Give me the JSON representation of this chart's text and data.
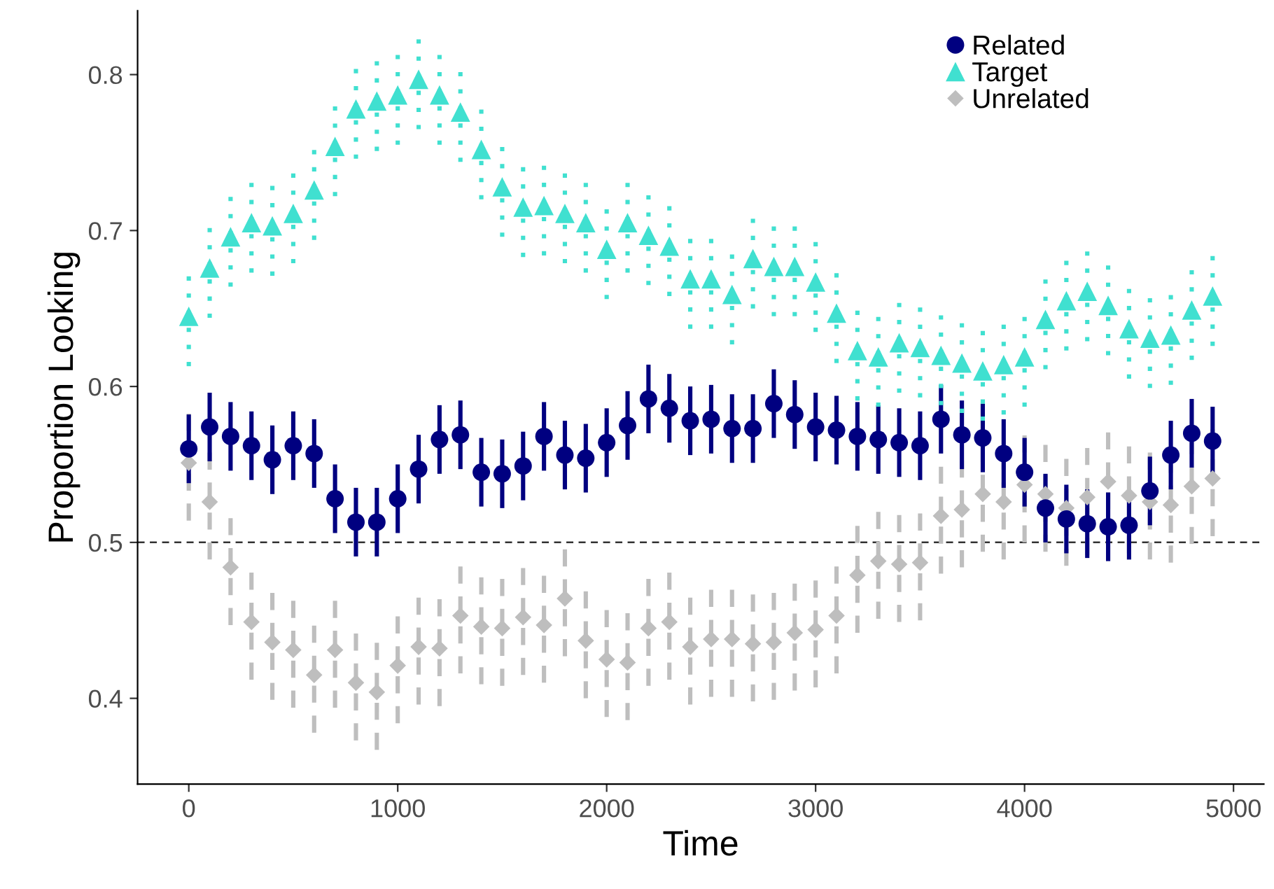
{
  "chart_data": {
    "type": "scatter",
    "xlabel": "Time",
    "ylabel": "Proportion Looking",
    "x": [
      0,
      100,
      200,
      300,
      400,
      500,
      600,
      700,
      800,
      900,
      1000,
      1100,
      1200,
      1300,
      1400,
      1500,
      1600,
      1700,
      1800,
      1900,
      2000,
      2100,
      2200,
      2300,
      2400,
      2500,
      2600,
      2700,
      2800,
      2900,
      3000,
      3100,
      3200,
      3300,
      3400,
      3500,
      3600,
      3700,
      3800,
      3900,
      4000,
      4100,
      4200,
      4300,
      4400,
      4500,
      4600,
      4700,
      4800,
      4900
    ],
    "xlim": [
      -245,
      5145
    ],
    "xticks": [
      0,
      1000,
      2000,
      3000,
      4000,
      5000
    ],
    "ylim": [
      0.345,
      0.841
    ],
    "yticks": [
      0.4,
      0.5,
      0.6,
      0.7,
      0.8
    ],
    "grid": false,
    "legend": "top right",
    "ref_lines": [
      {
        "axis": "y",
        "value": 0.5,
        "color": "#333333",
        "line_style": "dashed"
      }
    ],
    "series": [
      {
        "name": "Related",
        "color": "#000080",
        "marker": "circle",
        "line_style": "solid",
        "errors": [
          0.022,
          0.022,
          0.022,
          0.022,
          0.022,
          0.022,
          0.022,
          0.022,
          0.022,
          0.022,
          0.022,
          0.022,
          0.022,
          0.022,
          0.022,
          0.022,
          0.022,
          0.022,
          0.022,
          0.022,
          0.022,
          0.022,
          0.022,
          0.022,
          0.022,
          0.022,
          0.022,
          0.022,
          0.022,
          0.022,
          0.022,
          0.022,
          0.022,
          0.022,
          0.022,
          0.022,
          0.022,
          0.022,
          0.022,
          0.022,
          0.022,
          0.022,
          0.022,
          0.022,
          0.022,
          0.022,
          0.022,
          0.022,
          0.022,
          0.022
        ],
        "values": [
          0.56,
          0.574,
          0.568,
          0.562,
          0.553,
          0.562,
          0.557,
          0.528,
          0.513,
          0.513,
          0.528,
          0.547,
          0.566,
          0.569,
          0.545,
          0.544,
          0.549,
          0.568,
          0.556,
          0.554,
          0.564,
          0.575,
          0.592,
          0.586,
          0.578,
          0.579,
          0.573,
          0.573,
          0.589,
          0.582,
          0.574,
          0.572,
          0.568,
          0.566,
          0.564,
          0.562,
          0.579,
          0.569,
          0.567,
          0.557,
          0.545,
          0.522,
          0.515,
          0.512,
          0.51,
          0.511,
          0.533,
          0.556,
          0.57,
          0.565
        ]
      },
      {
        "name": "Target",
        "color": "#40e0d0",
        "marker": "triangle",
        "line_style": "dotted",
        "errors": [
          0.032,
          0.032,
          0.032,
          0.032,
          0.032,
          0.032,
          0.032,
          0.032,
          0.032,
          0.032,
          0.032,
          0.032,
          0.032,
          0.032,
          0.032,
          0.032,
          0.032,
          0.032,
          0.032,
          0.032,
          0.032,
          0.032,
          0.032,
          0.032,
          0.032,
          0.032,
          0.032,
          0.032,
          0.032,
          0.032,
          0.032,
          0.032,
          0.032,
          0.032,
          0.032,
          0.032,
          0.032,
          0.032,
          0.032,
          0.032,
          0.032,
          0.032,
          0.032,
          0.032,
          0.032,
          0.032,
          0.032,
          0.032,
          0.032,
          0.032
        ],
        "values": [
          0.645,
          0.676,
          0.696,
          0.705,
          0.703,
          0.711,
          0.726,
          0.754,
          0.778,
          0.783,
          0.787,
          0.797,
          0.787,
          0.776,
          0.752,
          0.728,
          0.715,
          0.716,
          0.711,
          0.705,
          0.688,
          0.705,
          0.697,
          0.69,
          0.669,
          0.669,
          0.659,
          0.682,
          0.677,
          0.677,
          0.667,
          0.647,
          0.623,
          0.619,
          0.628,
          0.625,
          0.62,
          0.615,
          0.61,
          0.614,
          0.619,
          0.643,
          0.655,
          0.661,
          0.652,
          0.637,
          0.631,
          0.633,
          0.649,
          0.658
        ]
      },
      {
        "name": "Unrelated",
        "color": "#bebebe",
        "marker": "diamond",
        "line_style": "dashed",
        "errors": [
          0.037,
          0.037,
          0.037,
          0.037,
          0.037,
          0.037,
          0.037,
          0.037,
          0.037,
          0.037,
          0.037,
          0.037,
          0.037,
          0.037,
          0.037,
          0.037,
          0.037,
          0.037,
          0.037,
          0.037,
          0.037,
          0.037,
          0.037,
          0.037,
          0.037,
          0.037,
          0.037,
          0.037,
          0.037,
          0.037,
          0.037,
          0.037,
          0.037,
          0.037,
          0.037,
          0.037,
          0.037,
          0.037,
          0.037,
          0.037,
          0.037,
          0.037,
          0.037,
          0.037,
          0.037,
          0.037,
          0.037,
          0.037,
          0.037,
          0.037
        ],
        "values": [
          0.551,
          0.526,
          0.484,
          0.449,
          0.436,
          0.431,
          0.415,
          0.431,
          0.41,
          0.404,
          0.421,
          0.433,
          0.432,
          0.453,
          0.446,
          0.445,
          0.452,
          0.447,
          0.464,
          0.437,
          0.425,
          0.423,
          0.445,
          0.449,
          0.433,
          0.438,
          0.438,
          0.435,
          0.436,
          0.442,
          0.444,
          0.453,
          0.479,
          0.488,
          0.486,
          0.487,
          0.517,
          0.521,
          0.531,
          0.526,
          0.537,
          0.531,
          0.522,
          0.529,
          0.539,
          0.53,
          0.526,
          0.524,
          0.536,
          0.541
        ]
      }
    ]
  }
}
